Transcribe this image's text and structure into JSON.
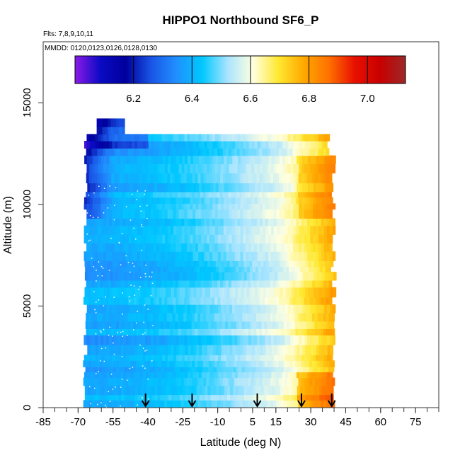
{
  "chart_data": {
    "type": "heatmap",
    "title": "HIPPO1 Northbound SF6_P",
    "subtitles": [
      "Flts: 7,8,9,10,11",
      "MMDD: 0120,0123,0126,0128,0130"
    ],
    "xlabel": "Latitude (deg N)",
    "ylabel": "Altitude (m)",
    "xlim": [
      -85,
      85
    ],
    "ylim": [
      0,
      18000
    ],
    "x_ticks": [
      -85,
      -70,
      -55,
      -40,
      -25,
      -10,
      5,
      15,
      30,
      45,
      60,
      75
    ],
    "y_ticks": [
      0,
      5000,
      10000,
      15000
    ],
    "colorbar": {
      "range": [
        6.0,
        7.13
      ],
      "ticks": [
        6.2,
        6.4,
        6.6,
        6.8,
        7.0
      ],
      "colors": [
        "#8b1ae8",
        "#0a0ac4",
        "#00009c",
        "#1a55e6",
        "#2090ff",
        "#00c8ff",
        "#a8e4ff",
        "#ffffe0",
        "#ffe830",
        "#ffa800",
        "#ff7000",
        "#e81000",
        "#c80000",
        "#9c2828"
      ]
    },
    "profile_markers_lat": [
      -41,
      -21,
      7,
      26,
      39
    ],
    "data_lat_range": [
      -68,
      40
    ],
    "data_alt_range": [
      0,
      14000
    ]
  }
}
